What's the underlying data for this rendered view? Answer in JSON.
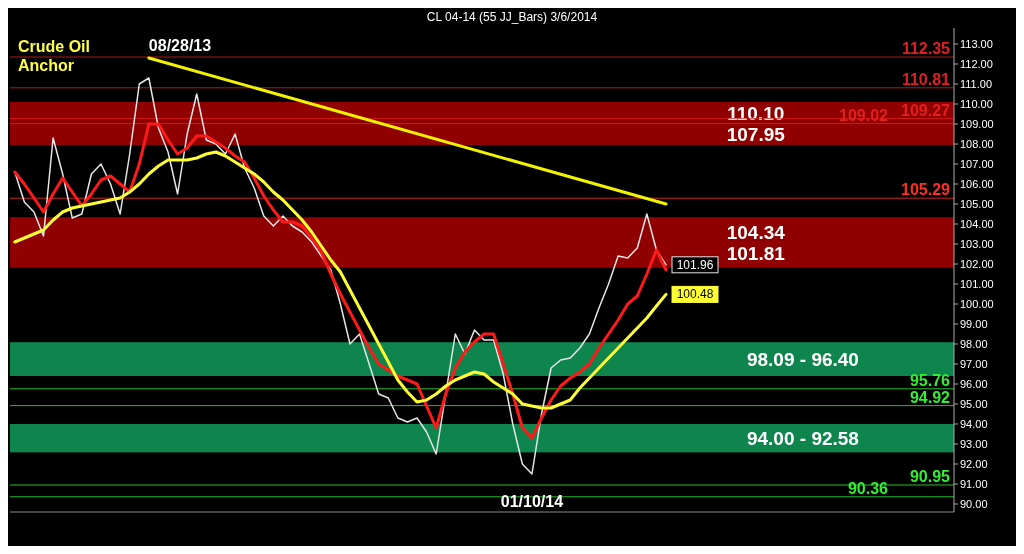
{
  "chart_data": {
    "type": "line",
    "title": "CL 04-14 (55 JJ_Bars)  3/6/2014",
    "annotations": [
      "Crude Oil\nAnchor",
      {
        "text": "08/28/13",
        "y": 112.35
      },
      {
        "text": "01/10/14",
        "y": 90.95
      }
    ],
    "categories": [
      null,
      null,
      null,
      null,
      null,
      null,
      null,
      null,
      null,
      null,
      null,
      null,
      null,
      null,
      null,
      null,
      null,
      null,
      null,
      null,
      null,
      null,
      null,
      null,
      null,
      null,
      null,
      null,
      null,
      null,
      null,
      null,
      null,
      null,
      null,
      null,
      null,
      null,
      null,
      null,
      null,
      null,
      null,
      null,
      null,
      null,
      null,
      null,
      null,
      null,
      null,
      null,
      null,
      null,
      null,
      null,
      null,
      null,
      null,
      null,
      null,
      null,
      null,
      null,
      null,
      null,
      null,
      null,
      null
    ],
    "ylim": [
      89.6,
      113.8
    ],
    "yticks": [
      {
        "value": 90,
        "label": "90.00"
      },
      {
        "value": 91,
        "label": "91.00"
      },
      {
        "value": 92,
        "label": "92.00"
      },
      {
        "value": 93,
        "label": "93.00"
      },
      {
        "value": 94,
        "label": "94.00"
      },
      {
        "value": 95,
        "label": "95.00"
      },
      {
        "value": 96,
        "label": "96.00"
      },
      {
        "value": 97,
        "label": "97.00"
      },
      {
        "value": 98,
        "label": "98.00"
      },
      {
        "value": 99,
        "label": "99.00"
      },
      {
        "value": 100,
        "label": "100.00"
      },
      {
        "value": 101,
        "label": "101.00"
      },
      {
        "value": 102,
        "label": "102.00"
      },
      {
        "value": 103,
        "label": "103.00"
      },
      {
        "value": 104,
        "label": "104.00"
      },
      {
        "value": 105,
        "label": "105.00"
      },
      {
        "value": 106,
        "label": "106.00"
      },
      {
        "value": 107,
        "label": "107.00"
      },
      {
        "value": 108,
        "label": "108.00"
      },
      {
        "value": 109,
        "label": "109.00"
      },
      {
        "value": 110,
        "label": "110.00"
      },
      {
        "value": 111,
        "label": "111.00"
      },
      {
        "value": 112,
        "label": "112.00"
      },
      {
        "value": 113,
        "label": "113.00"
      }
    ],
    "tick_labels": "y",
    "series": [
      {
        "color": "#e6e6e6",
        "values": [
          106.6,
          105.1,
          104.6,
          103.4,
          108.3,
          106.5,
          104.3,
          104.5,
          106.5,
          107.0,
          106.0,
          104.5,
          107.5,
          111.0,
          111.3,
          108.8,
          107.6,
          105.5,
          108.5,
          110.5,
          108.2,
          108.0,
          107.5,
          108.5,
          106.8,
          105.8,
          104.4,
          103.9,
          104.4,
          103.9,
          103.6,
          103.1,
          102.4,
          101.7,
          100.0,
          98.0,
          98.5,
          97.0,
          95.5,
          95.3,
          94.3,
          94.1,
          94.3,
          93.6,
          92.5,
          95.5,
          98.5,
          97.5,
          98.7,
          98.2,
          98.2,
          96.5,
          94.0,
          92.0,
          91.5,
          94.5,
          96.8,
          97.2,
          97.3,
          97.8,
          98.5,
          99.8,
          101.0,
          102.4,
          102.3,
          102.8,
          104.5,
          102.7,
          101.96
        ],
        "value_labels": [
          null,
          null,
          null,
          null,
          null,
          null,
          null,
          null,
          null,
          null,
          null,
          null,
          null,
          null,
          null,
          null,
          null,
          null,
          null,
          null,
          null,
          null,
          null,
          null,
          null,
          null,
          null,
          null,
          null,
          null,
          null,
          null,
          null,
          null,
          null,
          null,
          null,
          null,
          null,
          null,
          null,
          null,
          null,
          null,
          null,
          null,
          null,
          null,
          null,
          null,
          null,
          null,
          null,
          null,
          null,
          null,
          null,
          null,
          null,
          null,
          null,
          null,
          null,
          null,
          null,
          null,
          null,
          null,
          "101.96"
        ]
      },
      {
        "color": "#ff1a1a",
        "values": [
          106.6,
          106.0,
          105.3,
          104.6,
          105.5,
          106.3,
          105.6,
          104.9,
          105.5,
          106.2,
          106.4,
          106.0,
          105.6,
          107.0,
          109.0,
          109.0,
          108.2,
          107.5,
          107.8,
          108.4,
          108.4,
          108.1,
          107.8,
          107.4,
          107.1,
          106.3,
          105.4,
          104.7,
          104.1,
          104.1,
          103.9,
          103.3,
          102.6,
          101.5,
          100.5,
          99.6,
          98.7,
          97.8,
          97.0,
          96.7,
          96.4,
          96.2,
          96.0,
          94.9,
          93.8,
          95.5,
          96.8,
          97.6,
          98.1,
          98.5,
          98.5,
          97.0,
          95.5,
          93.8,
          93.3,
          94.3,
          95.2,
          95.9,
          96.3,
          96.6,
          97.0,
          97.8,
          98.5,
          99.2,
          100.0,
          100.4,
          101.5,
          102.7,
          101.7
        ]
      },
      {
        "color": "#ffff33",
        "values": [
          103.1,
          103.3,
          103.5,
          103.7,
          104.2,
          104.6,
          104.8,
          104.9,
          105.0,
          105.1,
          105.2,
          105.3,
          105.6,
          106.0,
          106.5,
          106.9,
          107.2,
          107.2,
          107.2,
          107.3,
          107.5,
          107.6,
          107.4,
          107.1,
          106.8,
          106.5,
          106.1,
          105.6,
          105.2,
          104.7,
          104.2,
          103.6,
          102.9,
          102.2,
          101.6,
          100.7,
          99.8,
          98.9,
          98.0,
          97.1,
          96.2,
          95.6,
          95.1,
          95.2,
          95.5,
          95.9,
          96.2,
          96.4,
          96.6,
          96.5,
          96.1,
          95.8,
          95.5,
          95.0,
          94.9,
          94.8,
          94.8,
          95.0,
          95.2,
          95.8,
          96.3,
          96.8,
          97.3,
          97.8,
          98.3,
          98.8,
          99.3,
          99.9,
          100.48
        ],
        "value_labels": [
          null,
          null,
          null,
          null,
          null,
          null,
          null,
          null,
          null,
          null,
          null,
          null,
          null,
          null,
          null,
          null,
          null,
          null,
          null,
          null,
          null,
          null,
          null,
          null,
          null,
          null,
          null,
          null,
          null,
          null,
          null,
          null,
          null,
          null,
          null,
          null,
          null,
          null,
          null,
          null,
          null,
          null,
          null,
          null,
          null,
          null,
          null,
          null,
          null,
          null,
          null,
          null,
          null,
          null,
          null,
          null,
          null,
          null,
          null,
          null,
          null,
          null,
          null,
          null,
          null,
          null,
          null,
          null,
          "100.48"
        ]
      },
      {
        "type": "line",
        "color": "#f2f200",
        "values": [
          null,
          null,
          null,
          null,
          null,
          null,
          null,
          null,
          null,
          null,
          null,
          null,
          null,
          null,
          112.3,
          null,
          null,
          null,
          null,
          null,
          null,
          null,
          null,
          null,
          null,
          null,
          null,
          null,
          null,
          null,
          null,
          null,
          null,
          null,
          null,
          null,
          null,
          null,
          null,
          null,
          null,
          null,
          null,
          null,
          null,
          null,
          null,
          null,
          null,
          null,
          null,
          null,
          null,
          null,
          null,
          null,
          null,
          null,
          null,
          null,
          null,
          null,
          null,
          null,
          null,
          null,
          null,
          null,
          105.0
        ]
      }
    ],
    "bands": [
      {
        "axis": "y",
        "from": 107.95,
        "to": 110.1,
        "label": "110.10\n107.95",
        "color": "#a00000"
      },
      {
        "axis": "y",
        "from": 101.81,
        "to": 104.34,
        "label": "104.34\n101.81",
        "color": "#a00000"
      },
      {
        "axis": "y",
        "from": 96.4,
        "to": 98.09,
        "label": "98.09 - 96.40",
        "color": "#0f9455"
      },
      {
        "axis": "y",
        "from": 92.58,
        "to": 94.0,
        "label": "94.00 - 92.58",
        "color": "#0f9455"
      }
    ],
    "ref_lines": [
      {
        "axis": "y",
        "value": 112.35,
        "label": "112.35",
        "color": "#e02020"
      },
      {
        "axis": "y",
        "value": 110.81,
        "label": "110.81",
        "color": "#e02020"
      },
      {
        "axis": "y",
        "value": 109.27,
        "label": "109.27",
        "color": "#e02020"
      },
      {
        "axis": "y",
        "value": 109.02,
        "label": "109.02",
        "color": "#e02020"
      },
      {
        "axis": "y",
        "value": 105.29,
        "label": "105.29",
        "color": "#ff3020"
      },
      {
        "axis": "y",
        "value": 95.76,
        "label": "95.76",
        "color": "#33ee33"
      },
      {
        "axis": "y",
        "value": 94.92,
        "label": "94.92",
        "color": "#33ee33"
      },
      {
        "axis": "y",
        "value": 90.95,
        "label": "90.95",
        "color": "#33ee33"
      },
      {
        "axis": "y",
        "value": 90.36,
        "label": "90.36",
        "color": "#33ee33"
      }
    ]
  }
}
